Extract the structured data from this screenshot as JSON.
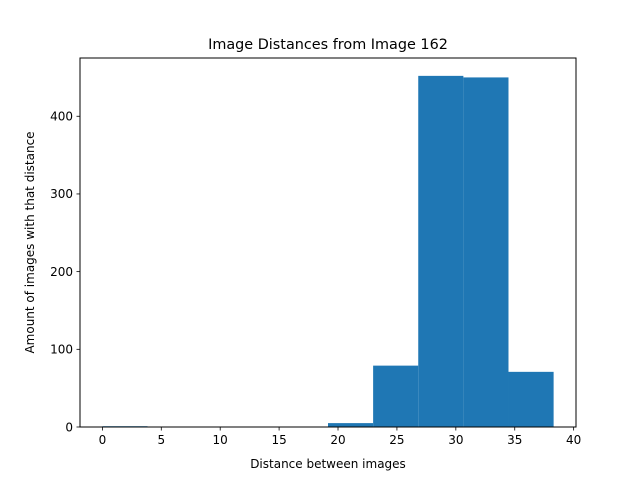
{
  "chart_data": {
    "type": "histogram",
    "title": "Image Distances from Image 162",
    "xlabel": "Distance between images",
    "ylabel": "Amount of images with that distance",
    "xlim": [
      -1.9,
      40.2
    ],
    "ylim": [
      0,
      475
    ],
    "xticks": [
      0,
      5,
      10,
      15,
      20,
      25,
      30,
      35,
      40
    ],
    "yticks": [
      0,
      100,
      200,
      300,
      400
    ],
    "bin_edges": [
      0.0,
      3.83,
      7.66,
      11.49,
      15.32,
      19.15,
      22.98,
      26.81,
      30.64,
      34.47,
      38.3
    ],
    "counts": [
      1,
      0,
      0,
      0,
      0,
      5,
      79,
      452,
      450,
      71
    ],
    "bar_color": "#1f77b4",
    "grid": false,
    "legend": "none"
  }
}
